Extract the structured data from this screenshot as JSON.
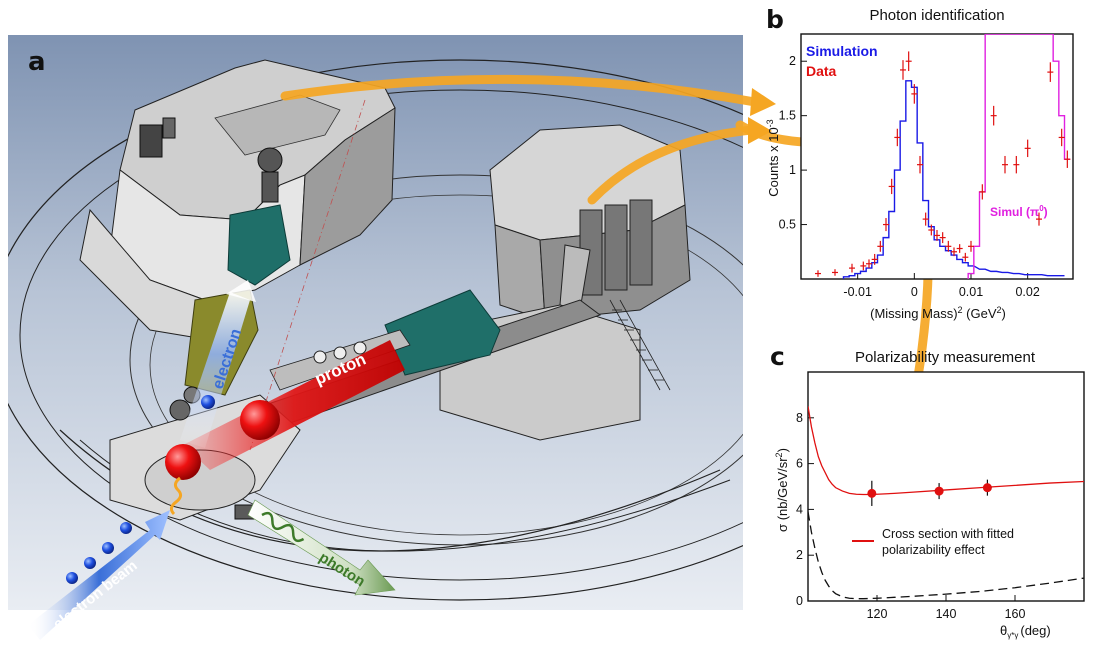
{
  "panel_a": {
    "letter": "a",
    "labels": {
      "electron": "electron",
      "proton": "proton",
      "photon": "photon",
      "electron_beam": "electron beam"
    },
    "colors": {
      "electron": "#3a6fd8",
      "proton": "#e21b1b",
      "photon": "#3d7a2a",
      "arrow": "#f5a623"
    }
  },
  "panel_b": {
    "letter": "b",
    "title": "Photon identification",
    "ylabel": "Counts x 10",
    "ylabel_exp": "-3",
    "xlabel": "(Missing Mass)",
    "xlabel_exp": "2",
    "xunit": "(GeV",
    "xunit_exp": "2",
    "xunit_close": ")",
    "legend_simulation": "Simulation",
    "legend_data": "Data",
    "pi0_label": "Simul (π",
    "pi0_exp": "0",
    "pi0_close": ")"
  },
  "panel_c": {
    "letter": "c",
    "title": "Polarizability measurement",
    "ylabel": "σ (nb/GeV/sr",
    "ylabel_exp": "2",
    "ylabel_close": ")",
    "xlabel": "θ",
    "xlabel_sub": "γ*γ",
    "xlabel_unit": "(deg)",
    "legend_line1": "Cross section with fitted",
    "legend_line2": "polarizability effect"
  },
  "chart_data": [
    {
      "type": "line",
      "title": "Photon identification",
      "xlabel": "(Missing Mass)2 (GeV2)",
      "ylabel": "Counts x 10-3",
      "xlim": [
        -0.02,
        0.028
      ],
      "ylim": [
        0,
        2.25
      ],
      "xticks": [
        "-0.01",
        "0",
        "0.01",
        "0.02"
      ],
      "xtick_values": [
        -0.01,
        0,
        0.01,
        0.02
      ],
      "yticks": [
        "0.5",
        "1",
        "1.5",
        "2"
      ],
      "ytick_values": [
        0.5,
        1,
        1.5,
        2
      ],
      "series": [
        {
          "name": "Simulation",
          "color": "#1a1ae6",
          "style": "step",
          "x": [
            -0.012,
            -0.011,
            -0.01,
            -0.009,
            -0.008,
            -0.007,
            -0.006,
            -0.005,
            -0.004,
            -0.003,
            -0.002,
            -0.001,
            0.0,
            0.001,
            0.002,
            0.003,
            0.004,
            0.005,
            0.006,
            0.007,
            0.008,
            0.009,
            0.01,
            0.012,
            0.014,
            0.016,
            0.018,
            0.02,
            0.022,
            0.024,
            0.026
          ],
          "y": [
            0.02,
            0.03,
            0.05,
            0.07,
            0.1,
            0.15,
            0.22,
            0.38,
            0.62,
            1.0,
            1.45,
            1.82,
            1.76,
            1.25,
            0.72,
            0.48,
            0.36,
            0.3,
            0.26,
            0.22,
            0.18,
            0.15,
            0.12,
            0.09,
            0.07,
            0.06,
            0.05,
            0.04,
            0.04,
            0.03,
            0.03
          ]
        },
        {
          "name": "Simul (π0)",
          "color": "#e020e0",
          "style": "step",
          "x": [
            0.01,
            0.011,
            0.012,
            0.013,
            0.014,
            0.015,
            0.016,
            0.017,
            0.018,
            0.019,
            0.02,
            0.021,
            0.022,
            0.023,
            0.024,
            0.025,
            0.026,
            0.027
          ],
          "y": [
            0.05,
            0.3,
            0.8,
            2.25,
            2.25,
            2.25,
            2.25,
            2.25,
            2.25,
            2.25,
            2.25,
            2.25,
            2.25,
            2.25,
            2.25,
            2.0,
            1.5,
            1.1
          ]
        },
        {
          "name": "Data",
          "color": "#e01010",
          "style": "points",
          "x": [
            -0.017,
            -0.014,
            -0.011,
            -0.009,
            -0.008,
            -0.007,
            -0.006,
            -0.005,
            -0.004,
            -0.003,
            -0.002,
            -0.001,
            0.0,
            0.001,
            0.002,
            0.003,
            0.004,
            0.005,
            0.006,
            0.007,
            0.008,
            0.009,
            0.01,
            0.012,
            0.014,
            0.016,
            0.018,
            0.02,
            0.022,
            0.024,
            0.026,
            0.027
          ],
          "y": [
            0.05,
            0.06,
            0.1,
            0.12,
            0.14,
            0.18,
            0.3,
            0.5,
            0.85,
            1.3,
            1.92,
            2.0,
            1.7,
            1.05,
            0.55,
            0.45,
            0.4,
            0.38,
            0.3,
            0.25,
            0.28,
            0.2,
            0.3,
            0.8,
            1.5,
            1.05,
            1.05,
            1.2,
            0.55,
            1.9,
            1.3,
            1.1
          ],
          "err": [
            0.03,
            0.03,
            0.04,
            0.04,
            0.04,
            0.05,
            0.05,
            0.06,
            0.07,
            0.08,
            0.09,
            0.09,
            0.09,
            0.08,
            0.06,
            0.05,
            0.05,
            0.05,
            0.05,
            0.04,
            0.04,
            0.04,
            0.05,
            0.07,
            0.09,
            0.08,
            0.08,
            0.08,
            0.06,
            0.09,
            0.08,
            0.08
          ]
        }
      ]
    },
    {
      "type": "line",
      "title": "Polarizability measurement",
      "xlabel": "θγ*γ (deg)",
      "ylabel": "σ (nb/GeV/sr2)",
      "xlim": [
        100,
        180
      ],
      "ylim": [
        0,
        10
      ],
      "xticks": [
        "120",
        "140",
        "160"
      ],
      "xtick_values": [
        120,
        140,
        160
      ],
      "yticks": [
        "0",
        "2",
        "4",
        "6",
        "8"
      ],
      "ytick_values": [
        0,
        2,
        4,
        6,
        8
      ],
      "series": [
        {
          "name": "Cross section with fitted polarizability effect",
          "color": "#e01010",
          "style": "line",
          "x": [
            100,
            101,
            102,
            103,
            104,
            105,
            106,
            107,
            108,
            110,
            112,
            114,
            116,
            118,
            120,
            125,
            130,
            140,
            150,
            160,
            170,
            180
          ],
          "y": [
            8.5,
            7.6,
            6.9,
            6.3,
            5.9,
            5.6,
            5.3,
            5.1,
            4.95,
            4.8,
            4.7,
            4.66,
            4.65,
            4.65,
            4.66,
            4.7,
            4.75,
            4.85,
            4.95,
            5.05,
            5.15,
            5.22
          ]
        },
        {
          "name": "",
          "color": "#111111",
          "style": "dashed",
          "x": [
            100,
            101,
            102,
            103,
            104,
            105,
            106,
            107,
            108,
            110,
            112,
            114,
            116,
            120,
            125,
            130,
            140,
            150,
            160,
            170,
            180
          ],
          "y": [
            3.9,
            3.0,
            2.3,
            1.7,
            1.25,
            0.9,
            0.65,
            0.45,
            0.32,
            0.18,
            0.12,
            0.1,
            0.1,
            0.12,
            0.16,
            0.2,
            0.3,
            0.42,
            0.58,
            0.78,
            1.0
          ]
        },
        {
          "name": "",
          "color": "#e01010",
          "style": "points",
          "x": [
            118.5,
            138,
            152
          ],
          "y": [
            4.7,
            4.8,
            4.95
          ],
          "err": [
            0.55,
            0.35,
            0.35
          ]
        }
      ]
    }
  ]
}
